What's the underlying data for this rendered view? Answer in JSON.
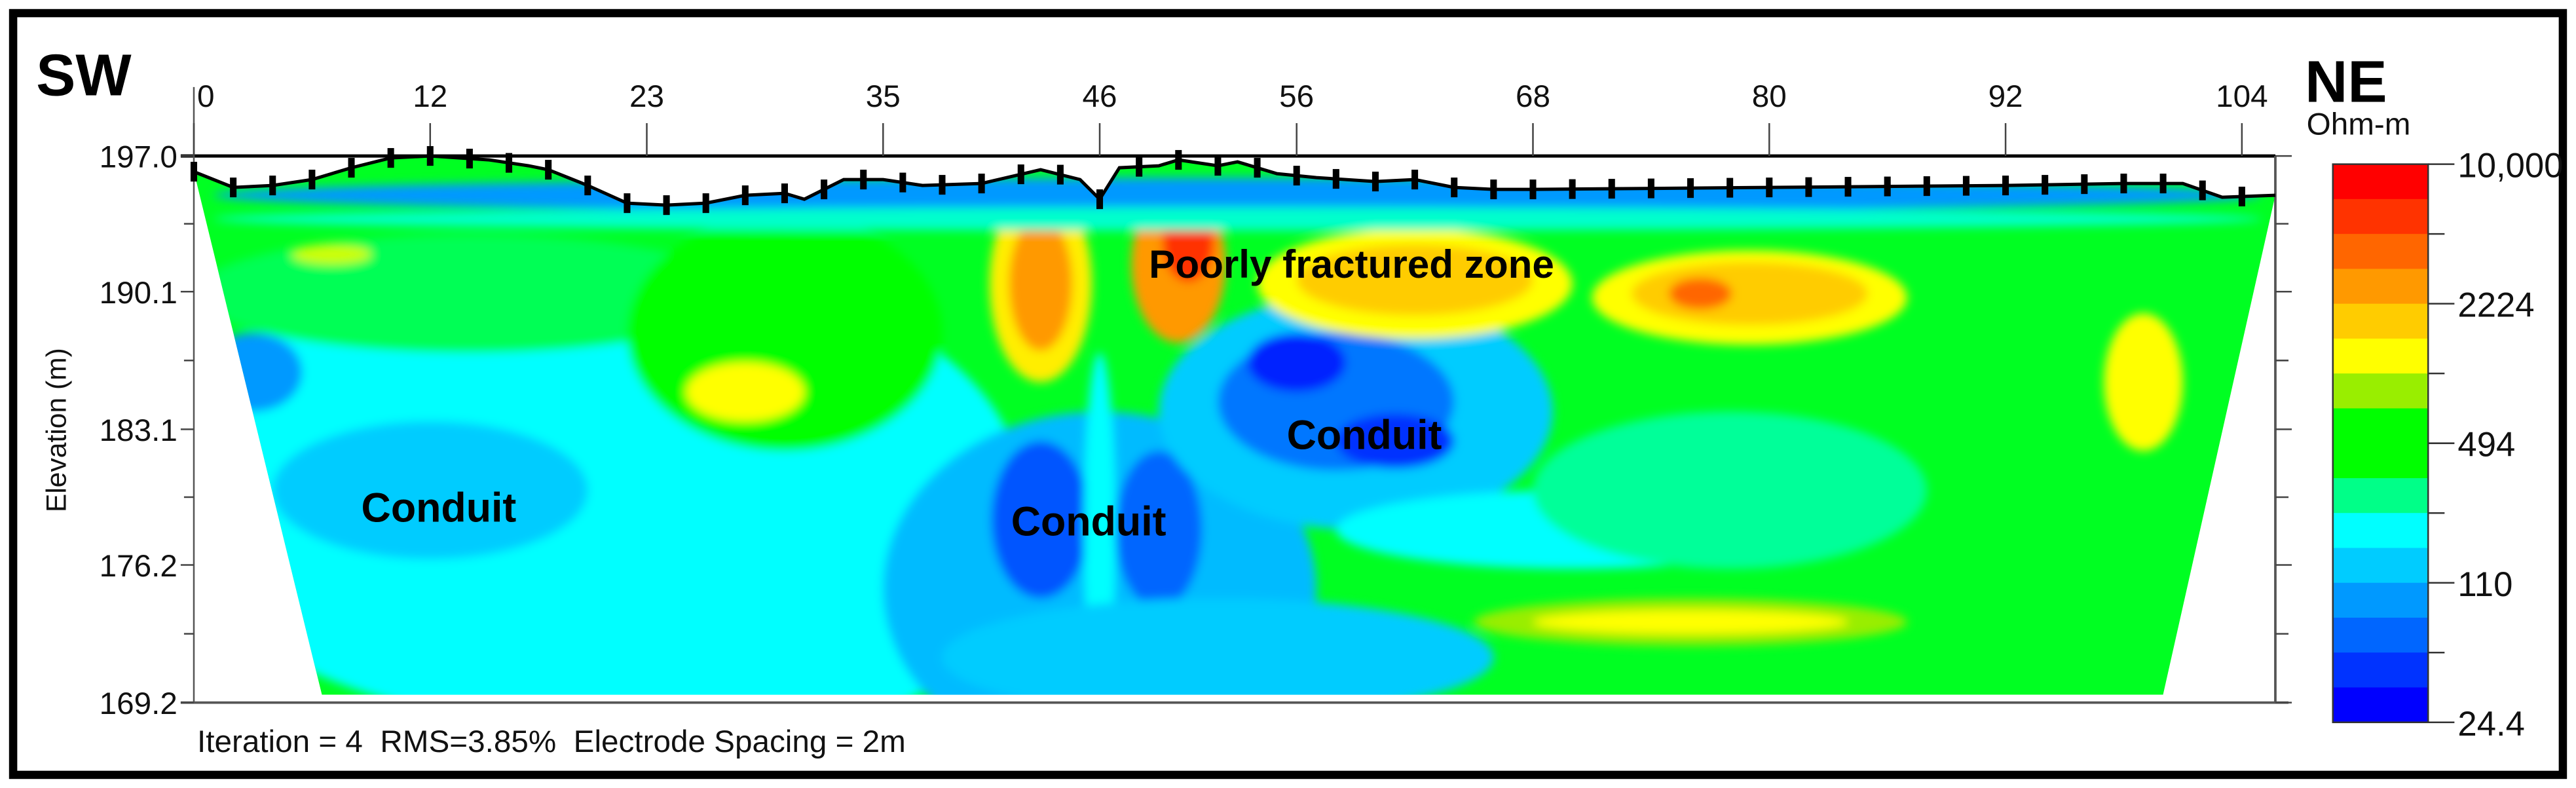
{
  "chart_data": {
    "type": "heatmap",
    "title_left": "SW",
    "title_right": "NE",
    "ylabel": "Elevation (m)",
    "colorbar_unit": "Ohm-m",
    "xlim": [
      0,
      105.7
    ],
    "ylim": [
      169.2,
      197.0
    ],
    "x_ticks": [
      "0",
      "12",
      "23",
      "35",
      "46",
      "56",
      "68",
      "80",
      "92",
      "104"
    ],
    "x_tick_values": [
      0,
      12,
      23,
      35,
      46,
      56,
      68,
      80,
      92,
      104
    ],
    "y_ticks": [
      "197.0",
      "190.1",
      "183.1",
      "176.2",
      "169.2"
    ],
    "y_tick_values": [
      197.0,
      190.1,
      183.1,
      176.2,
      169.2
    ],
    "colorbar_ticks": [
      "10,000",
      "2224",
      "494",
      "110",
      "24.4"
    ],
    "colorbar_colors": [
      "#ff0000",
      "#ff3300",
      "#ff6600",
      "#ff9900",
      "#ffcc00",
      "#ffff00",
      "#99ee00",
      "#00ff00",
      "#00ff00",
      "#00ff88",
      "#00ffff",
      "#00ccff",
      "#0099ff",
      "#0066ff",
      "#0033ff",
      "#0000ff"
    ],
    "annotations": [
      {
        "text": "Poorly fractured zone",
        "x": 48.5,
        "elev": 190.8
      },
      {
        "text": "Conduit",
        "x": 8.5,
        "elev": 178.4
      },
      {
        "text": "Conduit",
        "x": 41.5,
        "elev": 177.7
      },
      {
        "text": "Conduit",
        "x": 55.5,
        "elev": 182.1
      }
    ],
    "footer": "Iteration = 4  RMS=3.85%  Electrode Spacing = 2m",
    "iteration": 4,
    "rms_percent": 3.85,
    "electrode_spacing_m": 2,
    "topography": [
      [
        0,
        196.2
      ],
      [
        2,
        195.4
      ],
      [
        4,
        195.5
      ],
      [
        6,
        195.8
      ],
      [
        8,
        196.4
      ],
      [
        10,
        196.9
      ],
      [
        12,
        197.0
      ],
      [
        15,
        196.8
      ],
      [
        17,
        196.5
      ],
      [
        18,
        196.3
      ],
      [
        19,
        195.9
      ],
      [
        20,
        195.5
      ],
      [
        22,
        194.6
      ],
      [
        24,
        194.5
      ],
      [
        26,
        194.6
      ],
      [
        28,
        195.0
      ],
      [
        30,
        195.1
      ],
      [
        31,
        194.8
      ],
      [
        33,
        195.8
      ],
      [
        35,
        195.8
      ],
      [
        37,
        195.5
      ],
      [
        40,
        195.6
      ],
      [
        43,
        196.3
      ],
      [
        45,
        195.8
      ],
      [
        46,
        194.8
      ],
      [
        47,
        196.4
      ],
      [
        49,
        196.5
      ],
      [
        50,
        196.8
      ],
      [
        52,
        196.5
      ],
      [
        53,
        196.7
      ],
      [
        55,
        196.1
      ],
      [
        57,
        195.9
      ],
      [
        60,
        195.7
      ],
      [
        62,
        195.8
      ],
      [
        64,
        195.4
      ],
      [
        66,
        195.3
      ],
      [
        68,
        195.3
      ],
      [
        80,
        195.4
      ],
      [
        92,
        195.5
      ],
      [
        98,
        195.6
      ],
      [
        101,
        195.6
      ],
      [
        103,
        194.9
      ],
      [
        105.7,
        195.0
      ]
    ],
    "section_bottom": [
      [
        6.5,
        169.6
      ],
      [
        100,
        169.6
      ]
    ],
    "resistivity_zones": [
      {
        "x": 20,
        "elev": 180,
        "rx": 22,
        "ry": 12,
        "color": "#00ffff"
      },
      {
        "x": 14,
        "elev": 190,
        "rx": 14,
        "ry": 3,
        "color": "#00ff55"
      },
      {
        "x": 30,
        "elev": 188,
        "rx": 8,
        "ry": 6,
        "color": "#00ff00"
      },
      {
        "x": 12,
        "elev": 180,
        "rx": 8,
        "ry": 3.5,
        "color": "#00ccff"
      },
      {
        "x": 3,
        "elev": 186,
        "rx": 2.5,
        "ry": 2,
        "color": "#0099ff"
      },
      {
        "x": 30,
        "elev": 174,
        "rx": 10,
        "ry": 6,
        "color": "#00ffff"
      },
      {
        "x": 46,
        "elev": 175,
        "rx": 11,
        "ry": 9,
        "color": "#00bbff"
      },
      {
        "x": 43,
        "elev": 178.5,
        "rx": 2.5,
        "ry": 4,
        "color": "#0055ff"
      },
      {
        "x": 49,
        "elev": 178,
        "rx": 2.2,
        "ry": 4,
        "color": "#0066ff"
      },
      {
        "x": 46,
        "elev": 178,
        "rx": 0.8,
        "ry": 9,
        "color": "#00ffff"
      },
      {
        "x": 52,
        "elev": 171.5,
        "rx": 14,
        "ry": 3,
        "color": "#00ccff"
      },
      {
        "x": 59,
        "elev": 184,
        "rx": 10,
        "ry": 6,
        "color": "#00ccff"
      },
      {
        "x": 58,
        "elev": 184.5,
        "rx": 6,
        "ry": 3.5,
        "color": "#0077ff"
      },
      {
        "x": 56,
        "elev": 186.5,
        "rx": 2.5,
        "ry": 1.5,
        "color": "#0022ff"
      },
      {
        "x": 61,
        "elev": 182.5,
        "rx": 3,
        "ry": 1.4,
        "color": "#0033ff"
      },
      {
        "x": 70,
        "elev": 178,
        "rx": 12,
        "ry": 2,
        "color": "#00ffff"
      },
      {
        "x": 78,
        "elev": 180,
        "rx": 10,
        "ry": 4,
        "color": "#00ff99"
      },
      {
        "x": 76,
        "elev": 173.3,
        "rx": 11,
        "ry": 1.2,
        "color": "#99ee00"
      },
      {
        "x": 76,
        "elev": 173.3,
        "rx": 8,
        "ry": 0.6,
        "color": "#ffff00"
      },
      {
        "x": 43,
        "elev": 190.5,
        "rx": 2.6,
        "ry": 5,
        "color": "#ffee00"
      },
      {
        "x": 43,
        "elev": 190.5,
        "rx": 1.6,
        "ry": 3.4,
        "color": "#ff9900"
      },
      {
        "x": 50,
        "elev": 191.5,
        "rx": 2.4,
        "ry": 4,
        "color": "#ff9900"
      },
      {
        "x": 50.5,
        "elev": 192.6,
        "rx": 1.3,
        "ry": 2,
        "color": "#ff3300"
      },
      {
        "x": 62,
        "elev": 190.5,
        "rx": 8,
        "ry": 2.8,
        "color": "#ffff00"
      },
      {
        "x": 62,
        "elev": 190.7,
        "rx": 6,
        "ry": 1.8,
        "color": "#ffcc00"
      },
      {
        "x": 79,
        "elev": 189.8,
        "rx": 8,
        "ry": 2.4,
        "color": "#ffff00"
      },
      {
        "x": 79,
        "elev": 190,
        "rx": 6,
        "ry": 1.6,
        "color": "#ffcc00"
      },
      {
        "x": 76.5,
        "elev": 190,
        "rx": 1.6,
        "ry": 0.8,
        "color": "#ff6600"
      },
      {
        "x": 99,
        "elev": 185.5,
        "rx": 2,
        "ry": 3.5,
        "color": "#ffff00"
      },
      {
        "x": 28,
        "elev": 185,
        "rx": 3,
        "ry": 1.5,
        "color": "#ffff00"
      },
      {
        "x": 7,
        "elev": 192,
        "rx": 2,
        "ry": 0.5,
        "color": "#ccff00"
      },
      {
        "x": 53,
        "elev": 195,
        "rx": 52,
        "ry": 0.9,
        "color": "#0099ff"
      },
      {
        "x": 53,
        "elev": 193.8,
        "rx": 52,
        "ry": 0.6,
        "color": "#00ffcc"
      }
    ]
  }
}
